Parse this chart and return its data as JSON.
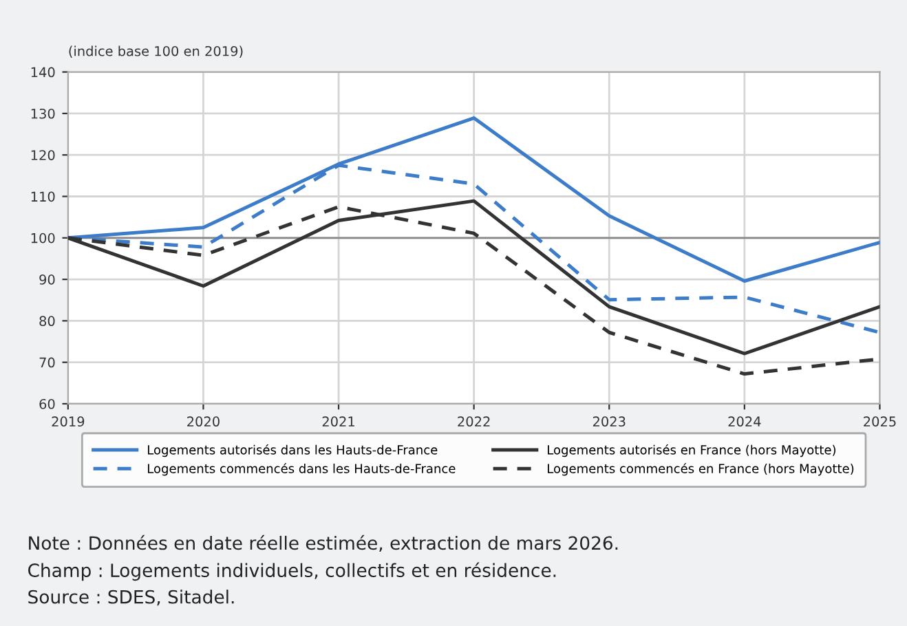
{
  "chart_data": {
    "type": "line",
    "ylabel": "(indice base 100 en 2019)",
    "x": [
      2019,
      2020,
      2021,
      2022,
      2023,
      2024,
      2025
    ],
    "series": [
      {
        "name": "Logements autorisés dans les Hauts-de-France",
        "color": "#3d7cc9",
        "line_style": "solid",
        "values": [
          100,
          102.5,
          117.8,
          128.9,
          105.3,
          89.6,
          98.9
        ]
      },
      {
        "name": "Logements commencés dans les Hauts-de-France",
        "color": "#3d7cc9",
        "line_style": "dashed",
        "values": [
          100,
          97.8,
          117.5,
          113,
          85.1,
          85.7,
          77.2
        ]
      },
      {
        "name": "Logements autorisés en France (hors Mayotte)",
        "color": "#333333",
        "line_style": "solid",
        "values": [
          100,
          88.4,
          104.2,
          108.9,
          83.4,
          72.1,
          83.4
        ]
      },
      {
        "name": "Logements commencés en France (hors Mayotte)",
        "color": "#333333",
        "line_style": "dashed",
        "values": [
          100,
          95.8,
          107.5,
          101.1,
          77.2,
          67.2,
          70.8
        ]
      }
    ],
    "xlim": [
      2019,
      2025
    ],
    "xticks": [
      2019,
      2020,
      2021,
      2022,
      2023,
      2024,
      2025
    ],
    "ylim": [
      60,
      140
    ],
    "yticks": [
      60,
      70,
      80,
      90,
      100,
      110,
      120,
      130,
      140
    ],
    "ref_lines": [
      {
        "axis": "y",
        "value": 100,
        "color": "#888888"
      }
    ],
    "grid": true,
    "legend": "bottom",
    "marker": "none",
    "annotations": [
      "Note : Données en date réelle estimée, extraction de mars 2026.",
      "Champ : Logements individuels, collectifs et en résidence.",
      "Source : SDES, Sitadel."
    ]
  }
}
